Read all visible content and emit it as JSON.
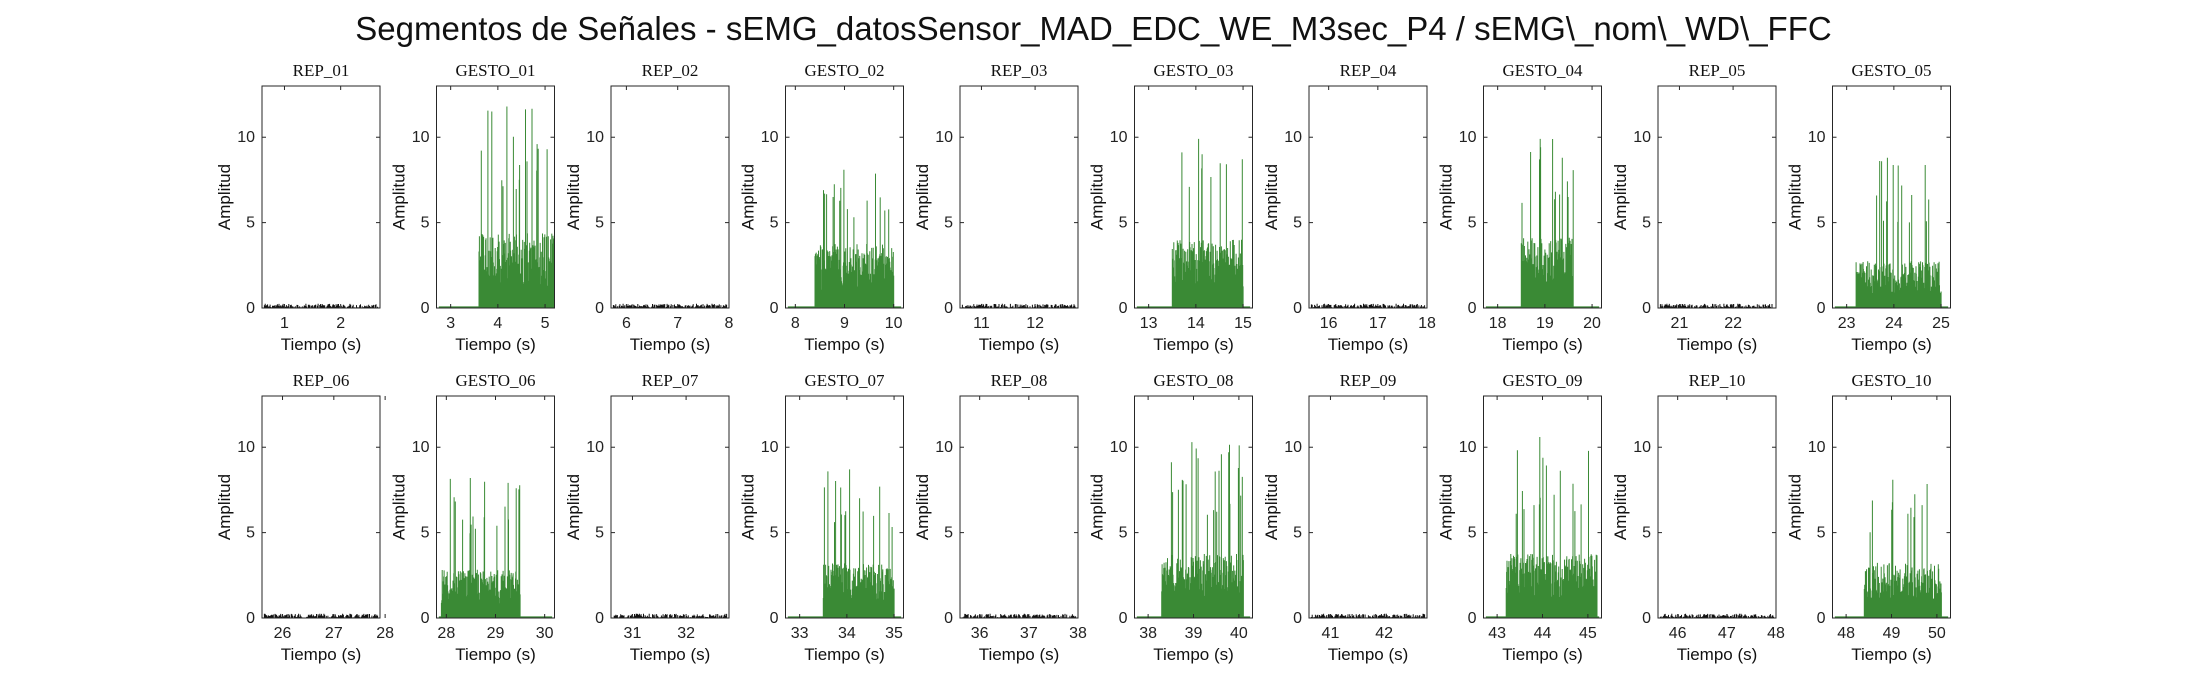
{
  "title": "Segmentos de Señales - sEMG_datosSensor_MAD_EDC_WE_M3sec_P4 / sEMG\\_nom\\_WD\\_FFC",
  "colors": {
    "gesture": "#3a8a35",
    "rest": "#111111",
    "axis": "#262626"
  },
  "chart_data": [
    {
      "type": "bar",
      "title": "REP_01",
      "kind": "rep",
      "xlim": [
        0.6,
        2.7
      ],
      "xticks": [
        1,
        2
      ],
      "ylim": [
        0,
        13
      ],
      "yticks": [
        0,
        5,
        10
      ],
      "xlabel": "Tiempo (s)",
      "ylabel": "Amplitud",
      "active": null,
      "amp_mean": 0.12,
      "amp_peak": 0.25
    },
    {
      "type": "bar",
      "title": "GESTO_01",
      "kind": "gesto",
      "xlim": [
        2.7,
        5.2
      ],
      "xticks": [
        3,
        4,
        5
      ],
      "ylim": [
        0,
        13
      ],
      "yticks": [
        0,
        5,
        10
      ],
      "xlabel": "Tiempo (s)",
      "ylabel": "Amplitud",
      "active": [
        3.6,
        5.2
      ],
      "amp_mean": 3.5,
      "amp_peak": 11.8
    },
    {
      "type": "bar",
      "title": "REP_02",
      "kind": "rep",
      "xlim": [
        5.7,
        8.0
      ],
      "xticks": [
        6,
        7,
        8
      ],
      "ylim": [
        0,
        13
      ],
      "yticks": [
        0,
        5,
        10
      ],
      "xlabel": "Tiempo (s)",
      "ylabel": "Amplitud",
      "active": null,
      "amp_mean": 0.12,
      "amp_peak": 0.25
    },
    {
      "type": "bar",
      "title": "GESTO_02",
      "kind": "gesto",
      "xlim": [
        7.8,
        10.2
      ],
      "xticks": [
        8,
        9,
        10
      ],
      "ylim": [
        0,
        13
      ],
      "yticks": [
        0,
        5,
        10
      ],
      "xlabel": "Tiempo (s)",
      "ylabel": "Amplitud",
      "active": [
        8.4,
        10.0
      ],
      "amp_mean": 3.0,
      "amp_peak": 8.1
    },
    {
      "type": "bar",
      "title": "REP_03",
      "kind": "rep",
      "xlim": [
        10.6,
        12.8
      ],
      "xticks": [
        11,
        12
      ],
      "ylim": [
        0,
        13
      ],
      "yticks": [
        0,
        5,
        10
      ],
      "xlabel": "Tiempo (s)",
      "ylabel": "Amplitud",
      "active": null,
      "amp_mean": 0.12,
      "amp_peak": 0.25
    },
    {
      "type": "bar",
      "title": "GESTO_03",
      "kind": "gesto",
      "xlim": [
        12.7,
        15.2
      ],
      "xticks": [
        13,
        14,
        15
      ],
      "ylim": [
        0,
        13
      ],
      "yticks": [
        0,
        5,
        10
      ],
      "xlabel": "Tiempo (s)",
      "ylabel": "Amplitud",
      "active": [
        13.5,
        15.0
      ],
      "amp_mean": 3.2,
      "amp_peak": 9.9
    },
    {
      "type": "bar",
      "title": "REP_04",
      "kind": "rep",
      "xlim": [
        15.6,
        18.0
      ],
      "xticks": [
        16,
        17,
        18
      ],
      "ylim": [
        0,
        13
      ],
      "yticks": [
        0,
        5,
        10
      ],
      "xlabel": "Tiempo (s)",
      "ylabel": "Amplitud",
      "active": null,
      "amp_mean": 0.12,
      "amp_peak": 0.25
    },
    {
      "type": "bar",
      "title": "GESTO_04",
      "kind": "gesto",
      "xlim": [
        17.7,
        20.2
      ],
      "xticks": [
        18,
        19,
        20
      ],
      "ylim": [
        0,
        13
      ],
      "yticks": [
        0,
        5,
        10
      ],
      "xlabel": "Tiempo (s)",
      "ylabel": "Amplitud",
      "active": [
        18.5,
        19.6
      ],
      "amp_mean": 3.3,
      "amp_peak": 9.9
    },
    {
      "type": "bar",
      "title": "REP_05",
      "kind": "rep",
      "xlim": [
        20.6,
        22.8
      ],
      "xticks": [
        21,
        22
      ],
      "ylim": [
        0,
        13
      ],
      "yticks": [
        0,
        5,
        10
      ],
      "xlabel": "Tiempo (s)",
      "ylabel": "Amplitud",
      "active": null,
      "amp_mean": 0.12,
      "amp_peak": 0.25
    },
    {
      "type": "bar",
      "title": "GESTO_05",
      "kind": "gesto",
      "xlim": [
        22.7,
        25.2
      ],
      "xticks": [
        23,
        24,
        25
      ],
      "ylim": [
        0,
        13
      ],
      "yticks": [
        0,
        5,
        10
      ],
      "xlabel": "Tiempo (s)",
      "ylabel": "Amplitud",
      "active": [
        23.2,
        25.0
      ],
      "amp_mean": 2.2,
      "amp_peak": 8.8
    },
    {
      "type": "bar",
      "title": "REP_06",
      "kind": "rep",
      "xlim": [
        25.6,
        27.9
      ],
      "xticks": [
        26,
        27,
        28
      ],
      "ylim": [
        0,
        13
      ],
      "yticks": [
        0,
        5,
        10
      ],
      "xlabel": "Tiempo (s)",
      "ylabel": "Amplitud",
      "active": null,
      "amp_mean": 0.12,
      "amp_peak": 0.25
    },
    {
      "type": "bar",
      "title": "GESTO_06",
      "kind": "gesto",
      "xlim": [
        27.8,
        30.2
      ],
      "xticks": [
        28,
        29,
        30
      ],
      "ylim": [
        0,
        13
      ],
      "yticks": [
        0,
        5,
        10
      ],
      "xlabel": "Tiempo (s)",
      "ylabel": "Amplitud",
      "active": [
        27.9,
        29.5
      ],
      "amp_mean": 2.3,
      "amp_peak": 8.2
    },
    {
      "type": "bar",
      "title": "REP_07",
      "kind": "rep",
      "xlim": [
        30.6,
        32.8
      ],
      "xticks": [
        31,
        32
      ],
      "ylim": [
        0,
        13
      ],
      "yticks": [
        0,
        5,
        10
      ],
      "xlabel": "Tiempo (s)",
      "ylabel": "Amplitud",
      "active": null,
      "amp_mean": 0.12,
      "amp_peak": 0.25
    },
    {
      "type": "bar",
      "title": "GESTO_07",
      "kind": "gesto",
      "xlim": [
        32.7,
        35.2
      ],
      "xticks": [
        33,
        34,
        35
      ],
      "ylim": [
        0,
        13
      ],
      "yticks": [
        0,
        5,
        10
      ],
      "xlabel": "Tiempo (s)",
      "ylabel": "Amplitud",
      "active": [
        33.5,
        35.0
      ],
      "amp_mean": 2.6,
      "amp_peak": 8.7
    },
    {
      "type": "bar",
      "title": "REP_08",
      "kind": "rep",
      "xlim": [
        35.6,
        38.0
      ],
      "xticks": [
        36,
        37,
        38
      ],
      "ylim": [
        0,
        13
      ],
      "yticks": [
        0,
        5,
        10
      ],
      "xlabel": "Tiempo (s)",
      "ylabel": "Amplitud",
      "active": null,
      "amp_mean": 0.12,
      "amp_peak": 0.25
    },
    {
      "type": "bar",
      "title": "GESTO_08",
      "kind": "gesto",
      "xlim": [
        37.7,
        40.3
      ],
      "xticks": [
        38,
        39,
        40
      ],
      "ylim": [
        0,
        13
      ],
      "yticks": [
        0,
        5,
        10
      ],
      "xlabel": "Tiempo (s)",
      "ylabel": "Amplitud",
      "active": [
        38.3,
        40.1
      ],
      "amp_mean": 3.0,
      "amp_peak": 10.3
    },
    {
      "type": "bar",
      "title": "REP_09",
      "kind": "rep",
      "xlim": [
        40.6,
        42.8
      ],
      "xticks": [
        41,
        42
      ],
      "ylim": [
        0,
        13
      ],
      "yticks": [
        0,
        5,
        10
      ],
      "xlabel": "Tiempo (s)",
      "ylabel": "Amplitud",
      "active": null,
      "amp_mean": 0.12,
      "amp_peak": 0.25
    },
    {
      "type": "bar",
      "title": "GESTO_09",
      "kind": "gesto",
      "xlim": [
        42.7,
        45.3
      ],
      "xticks": [
        43,
        44,
        45
      ],
      "ylim": [
        0,
        13
      ],
      "yticks": [
        0,
        5,
        10
      ],
      "xlabel": "Tiempo (s)",
      "ylabel": "Amplitud",
      "active": [
        43.2,
        45.2
      ],
      "amp_mean": 3.0,
      "amp_peak": 10.6
    },
    {
      "type": "bar",
      "title": "REP_10",
      "kind": "rep",
      "xlim": [
        45.6,
        48.0
      ],
      "xticks": [
        46,
        47,
        48
      ],
      "ylim": [
        0,
        13
      ],
      "yticks": [
        0,
        5,
        10
      ],
      "xlabel": "Tiempo (s)",
      "ylabel": "Amplitud",
      "active": null,
      "amp_mean": 0.12,
      "amp_peak": 0.25
    },
    {
      "type": "bar",
      "title": "GESTO_10",
      "kind": "gesto",
      "xlim": [
        47.7,
        50.3
      ],
      "xticks": [
        48,
        49,
        50
      ],
      "ylim": [
        0,
        13
      ],
      "yticks": [
        0,
        5,
        10
      ],
      "xlabel": "Tiempo (s)",
      "ylabel": "Amplitud",
      "active": [
        48.4,
        50.1
      ],
      "amp_mean": 2.6,
      "amp_peak": 8.1
    }
  ]
}
